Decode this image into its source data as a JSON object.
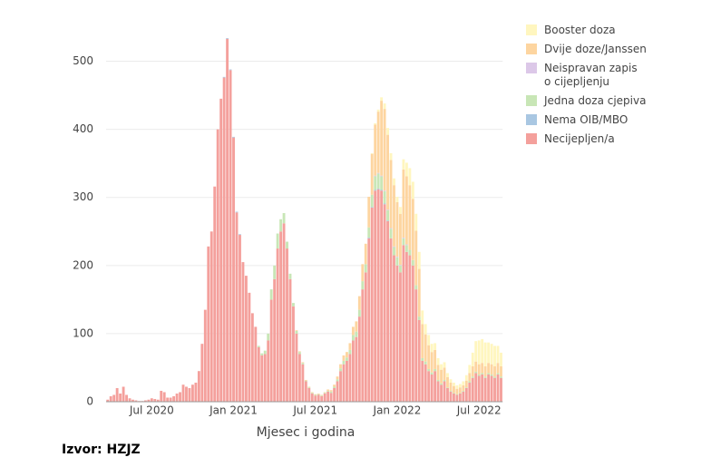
{
  "chart_data": {
    "type": "stacked_bar",
    "xlabel": "Mjesec i godina",
    "source": "Izvor: HZJZ",
    "ylim": [
      0,
      550
    ],
    "yticks": [
      0,
      100,
      200,
      300,
      400,
      500
    ],
    "grid": true,
    "categories": [
      null,
      null,
      null,
      null,
      null,
      null,
      null,
      null,
      null,
      null,
      null,
      null,
      null,
      null,
      "Jul 2020",
      null,
      null,
      null,
      null,
      null,
      null,
      null,
      null,
      null,
      null,
      null,
      null,
      null,
      null,
      null,
      null,
      null,
      null,
      null,
      null,
      null,
      null,
      null,
      null,
      null,
      "Jan 2021",
      null,
      null,
      null,
      null,
      null,
      null,
      null,
      null,
      null,
      null,
      null,
      null,
      null,
      null,
      null,
      null,
      null,
      null,
      null,
      null,
      null,
      null,
      null,
      null,
      null,
      "Jul 2021",
      null,
      null,
      null,
      null,
      null,
      null,
      null,
      null,
      null,
      null,
      null,
      null,
      null,
      null,
      null,
      null,
      null,
      null,
      null,
      null,
      null,
      null,
      null,
      null,
      null,
      "Jan 2022",
      null,
      null,
      null,
      null,
      null,
      null,
      null,
      null,
      null,
      null,
      null,
      null,
      null,
      null,
      null,
      null,
      null,
      null,
      null,
      null,
      null,
      null,
      null,
      null,
      null,
      "Jul 2022",
      null,
      null,
      null,
      null,
      null,
      null,
      null
    ],
    "series": [
      {
        "name": "Booster doza",
        "color": "#fff6bf",
        "values": [
          0,
          0,
          0,
          0,
          0,
          0,
          0,
          0,
          0,
          0,
          0,
          0,
          0,
          0,
          0,
          0,
          0,
          0,
          0,
          0,
          0,
          0,
          0,
          0,
          0,
          0,
          0,
          0,
          0,
          0,
          0,
          0,
          0,
          0,
          0,
          0,
          0,
          0,
          0,
          0,
          0,
          0,
          0,
          0,
          0,
          0,
          0,
          0,
          0,
          0,
          0,
          0,
          0,
          0,
          0,
          0,
          0,
          0,
          0,
          0,
          0,
          0,
          0,
          0,
          0,
          0,
          0,
          0,
          0,
          0,
          0,
          0,
          0,
          0,
          0,
          0,
          0,
          0,
          0,
          0,
          0,
          0,
          0,
          0,
          1,
          2,
          3,
          5,
          8,
          10,
          10,
          10,
          8,
          10,
          15,
          20,
          25,
          25,
          25,
          25,
          20,
          15,
          15,
          12,
          10,
          10,
          8,
          8,
          6,
          5,
          5,
          5,
          5,
          6,
          8,
          12,
          20,
          30,
          35,
          35,
          35,
          30,
          30,
          30,
          25,
          20
        ]
      },
      {
        "name": "Dvije doze/Janssen",
        "color": "#fdd5a0",
        "values": [
          0,
          0,
          0,
          0,
          0,
          0,
          0,
          0,
          0,
          0,
          0,
          0,
          0,
          0,
          0,
          0,
          0,
          0,
          0,
          0,
          0,
          0,
          0,
          0,
          0,
          0,
          0,
          0,
          0,
          0,
          0,
          0,
          0,
          0,
          0,
          0,
          0,
          0,
          0,
          0,
          0,
          0,
          0,
          0,
          0,
          0,
          0,
          0,
          0,
          0,
          0,
          0,
          0,
          0,
          0,
          0,
          0,
          0,
          0,
          0,
          1,
          1,
          1,
          1,
          1,
          1,
          1,
          1,
          1,
          1,
          2,
          2,
          3,
          4,
          6,
          8,
          8,
          10,
          12,
          15,
          20,
          25,
          30,
          45,
          60,
          75,
          90,
          110,
          120,
          110,
          100,
          90,
          80,
          75,
          100,
          100,
          95,
          90,
          80,
          70,
          50,
          40,
          35,
          30,
          28,
          22,
          20,
          18,
          15,
          12,
          10,
          8,
          8,
          8,
          10,
          12,
          15,
          15,
          15,
          15,
          15,
          15,
          15,
          15,
          15,
          15
        ]
      },
      {
        "name": "Neispravan zapis o cijepljenju",
        "color": "#dcc8e8",
        "values": [
          0,
          0,
          0,
          0,
          0,
          0,
          0,
          0,
          0,
          0,
          0,
          0,
          0,
          0,
          0,
          0,
          0,
          0,
          0,
          0,
          0,
          0,
          0,
          0,
          0,
          0,
          0,
          0,
          0,
          0,
          0,
          0,
          0,
          0,
          0,
          0,
          0,
          0,
          0,
          0,
          0,
          0,
          0,
          0,
          0,
          0,
          0,
          0,
          0,
          0,
          0,
          0,
          0,
          0,
          0,
          0,
          0,
          0,
          0,
          0,
          0,
          0,
          0,
          0,
          0,
          0,
          0,
          0,
          0,
          0,
          0,
          0,
          0,
          0,
          0,
          0,
          0,
          0,
          0,
          0,
          0,
          0,
          0,
          0,
          0,
          1,
          1,
          1,
          1,
          1,
          1,
          1,
          1,
          1,
          1,
          1,
          0,
          0,
          0,
          0,
          0,
          0,
          0,
          0,
          0,
          0,
          0,
          0,
          0,
          0,
          0,
          0,
          0,
          0,
          0,
          0,
          0,
          0,
          0,
          0,
          0,
          0,
          0,
          0,
          0,
          0
        ]
      },
      {
        "name": "Jedna doza cjepiva",
        "color": "#c8e6b6",
        "values": [
          0,
          0,
          0,
          0,
          0,
          0,
          0,
          0,
          0,
          0,
          0,
          0,
          0,
          0,
          0,
          0,
          0,
          0,
          0,
          0,
          0,
          0,
          0,
          0,
          0,
          0,
          0,
          0,
          0,
          0,
          0,
          0,
          0,
          0,
          0,
          0,
          0,
          0,
          0,
          0,
          0,
          0,
          0,
          0,
          0,
          0,
          0,
          0,
          2,
          3,
          5,
          10,
          15,
          20,
          22,
          18,
          15,
          10,
          8,
          5,
          4,
          3,
          2,
          1,
          1,
          1,
          1,
          1,
          1,
          1,
          1,
          2,
          2,
          3,
          4,
          5,
          5,
          6,
          8,
          8,
          10,
          12,
          12,
          15,
          18,
          20,
          22,
          20,
          18,
          15,
          14,
          12,
          12,
          10,
          10,
          10,
          8,
          8,
          6,
          5,
          4,
          4,
          3,
          3,
          3,
          2,
          2,
          2,
          1,
          1,
          1,
          1,
          1,
          1,
          1,
          2,
          2,
          2,
          2,
          2,
          2,
          2,
          2,
          2,
          2,
          2
        ]
      },
      {
        "name": "Nema OIB/MBO",
        "color": "#a9c7e2",
        "values": [
          0,
          0,
          0,
          0,
          0,
          0,
          0,
          0,
          0,
          0,
          0,
          0,
          0,
          0,
          0,
          0,
          0,
          0,
          0,
          0,
          0,
          0,
          0,
          0,
          0,
          0,
          0,
          0,
          0,
          0,
          0,
          0,
          0,
          0,
          0,
          0,
          0,
          1,
          1,
          1,
          1,
          1,
          1,
          0,
          0,
          0,
          0,
          0,
          0,
          0,
          0,
          0,
          0,
          0,
          0,
          0,
          0,
          0,
          0,
          0,
          0,
          0,
          0,
          0,
          0,
          0,
          0,
          0,
          0,
          0,
          0,
          0,
          0,
          0,
          0,
          0,
          0,
          0,
          0,
          0,
          0,
          0,
          0,
          1,
          1,
          1,
          1,
          1,
          1,
          1,
          0,
          0,
          0,
          0,
          0,
          0,
          0,
          0,
          0,
          0,
          0,
          0,
          0,
          0,
          0,
          0,
          0,
          0,
          0,
          0,
          0,
          0,
          0,
          0,
          0,
          0,
          0,
          0,
          0,
          0,
          0,
          0,
          0,
          0,
          0,
          0
        ]
      },
      {
        "name": "Necijepljen/a",
        "color": "#f4a09c",
        "values": [
          3,
          8,
          10,
          20,
          12,
          22,
          10,
          5,
          3,
          2,
          1,
          1,
          2,
          3,
          5,
          4,
          3,
          16,
          14,
          6,
          6,
          8,
          12,
          14,
          25,
          22,
          20,
          25,
          28,
          45,
          85,
          135,
          228,
          250,
          316,
          400,
          445,
          476,
          533,
          487,
          388,
          278,
          245,
          205,
          185,
          160,
          130,
          110,
          80,
          68,
          70,
          90,
          150,
          180,
          225,
          250,
          262,
          225,
          180,
          140,
          100,
          70,
          55,
          30,
          20,
          12,
          9,
          10,
          8,
          12,
          15,
          13,
          20,
          30,
          45,
          55,
          60,
          70,
          90,
          95,
          125,
          165,
          190,
          240,
          285,
          310,
          312,
          310,
          290,
          265,
          240,
          215,
          200,
          190,
          230,
          220,
          215,
          200,
          165,
          120,
          60,
          55,
          45,
          40,
          45,
          30,
          25,
          30,
          20,
          15,
          12,
          10,
          12,
          15,
          20,
          28,
          35,
          42,
          38,
          40,
          35,
          40,
          38,
          35,
          40,
          35
        ]
      }
    ]
  }
}
